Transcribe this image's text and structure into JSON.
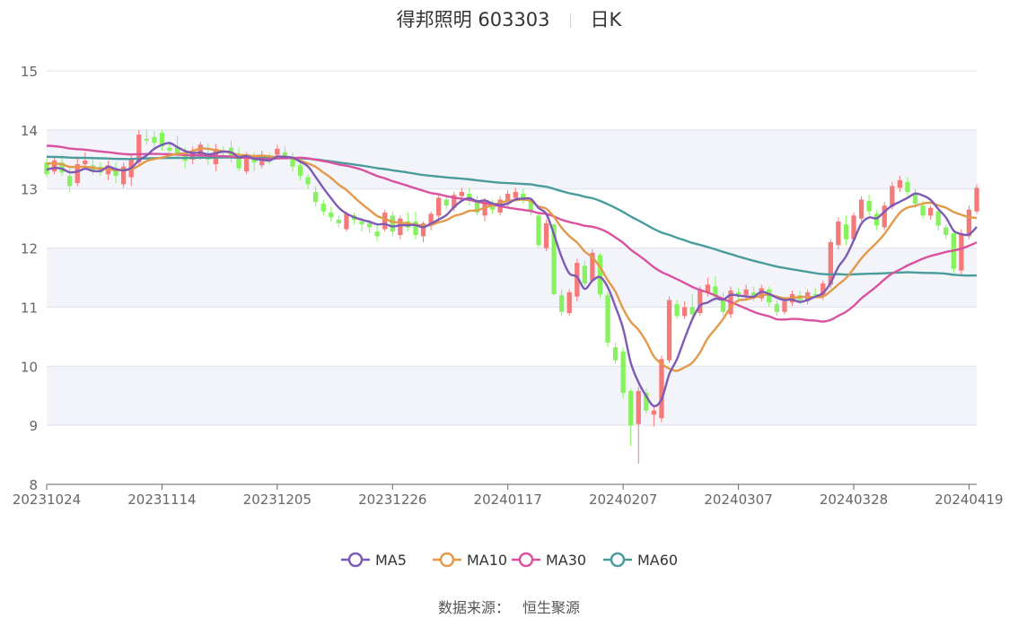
{
  "header": {
    "stock_name": "得邦照明",
    "stock_code": "603303",
    "period": "日K"
  },
  "footer": {
    "source_label": "数据来源：",
    "source_name": "恒生聚源"
  },
  "colors": {
    "up": "#f47a7a",
    "down": "#86f25e",
    "MA5": "#7d5ab3",
    "MA10": "#e3994b",
    "MA30": "#d9529f",
    "MA60": "#4a9c9c",
    "band": "#f3f4fa",
    "grid": "#dde1ee"
  },
  "chart_data": {
    "type": "candlestick",
    "title": "得邦照明 603303 日K",
    "ylim": [
      8,
      15
    ],
    "yticks": [
      8,
      9,
      10,
      11,
      12,
      13,
      14,
      15
    ],
    "xtick_labels": [
      "20231024",
      "20231114",
      "20231205",
      "20231226",
      "20240117",
      "20240207",
      "20240307",
      "20240328",
      "20240419"
    ],
    "xtick_index": [
      0,
      15,
      30,
      45,
      60,
      75,
      90,
      105,
      120
    ],
    "legend": [
      "MA5",
      "MA10",
      "MA30",
      "MA60"
    ],
    "legend_position": "bottom-center",
    "candles": [
      [
        13.45,
        13.25,
        13.52,
        13.2
      ],
      [
        13.3,
        13.48,
        13.55,
        13.25
      ],
      [
        13.45,
        13.28,
        13.58,
        13.22
      ],
      [
        13.22,
        13.05,
        13.4,
        12.95
      ],
      [
        13.1,
        13.42,
        13.55,
        13.05
      ],
      [
        13.42,
        13.48,
        13.62,
        13.35
      ],
      [
        13.4,
        13.3,
        13.52,
        13.25
      ],
      [
        13.38,
        13.28,
        13.45,
        13.22
      ],
      [
        13.25,
        13.4,
        13.48,
        13.15
      ],
      [
        13.35,
        13.22,
        13.45,
        13.1
      ],
      [
        13.08,
        13.38,
        13.45,
        13.02
      ],
      [
        13.2,
        13.5,
        13.58,
        13.05
      ],
      [
        13.45,
        13.92,
        14.0,
        13.4
      ],
      [
        13.85,
        13.82,
        14.0,
        13.75
      ],
      [
        13.88,
        13.78,
        13.98,
        13.7
      ],
      [
        13.95,
        13.72,
        14.0,
        13.65
      ],
      [
        13.7,
        13.65,
        13.8,
        13.6
      ],
      [
        13.72,
        13.58,
        13.9,
        13.55
      ],
      [
        13.62,
        13.48,
        13.7,
        13.35
      ],
      [
        13.5,
        13.62,
        13.72,
        13.42
      ],
      [
        13.55,
        13.75,
        13.8,
        13.5
      ],
      [
        13.6,
        13.5,
        13.78,
        13.4
      ],
      [
        13.42,
        13.68,
        13.76,
        13.3
      ],
      [
        13.65,
        13.62,
        13.72,
        13.55
      ],
      [
        13.7,
        13.55,
        13.82,
        13.45
      ],
      [
        13.55,
        13.35,
        13.7,
        13.3
      ],
      [
        13.3,
        13.58,
        13.62,
        13.25
      ],
      [
        13.55,
        13.45,
        13.62,
        13.3
      ],
      [
        13.4,
        13.55,
        13.65,
        13.35
      ],
      [
        13.5,
        13.48,
        13.6,
        13.42
      ],
      [
        13.58,
        13.68,
        13.75,
        13.5
      ],
      [
        13.62,
        13.55,
        13.72,
        13.5
      ],
      [
        13.55,
        13.38,
        13.62,
        13.3
      ],
      [
        13.4,
        13.22,
        13.5,
        13.15
      ],
      [
        13.2,
        13.08,
        13.25,
        13.0
      ],
      [
        12.95,
        12.78,
        13.05,
        12.7
      ],
      [
        12.75,
        12.62,
        12.82,
        12.55
      ],
      [
        12.6,
        12.52,
        12.7,
        12.45
      ],
      [
        12.48,
        12.42,
        12.55,
        12.35
      ],
      [
        12.32,
        12.58,
        12.62,
        12.28
      ],
      [
        12.55,
        12.48,
        12.6,
        12.4
      ],
      [
        12.45,
        12.4,
        12.52,
        12.28
      ],
      [
        12.42,
        12.35,
        12.48,
        12.25
      ],
      [
        12.28,
        12.2,
        12.38,
        12.12
      ],
      [
        12.32,
        12.6,
        12.65,
        12.28
      ],
      [
        12.55,
        12.28,
        12.62,
        12.2
      ],
      [
        12.22,
        12.5,
        12.55,
        12.15
      ],
      [
        12.45,
        12.35,
        12.6,
        12.28
      ],
      [
        12.45,
        12.22,
        12.62,
        12.15
      ],
      [
        12.2,
        12.42,
        12.45,
        12.1
      ],
      [
        12.38,
        12.58,
        12.62,
        12.3
      ],
      [
        12.55,
        12.85,
        12.92,
        12.45
      ],
      [
        12.82,
        12.72,
        12.9,
        12.65
      ],
      [
        12.68,
        12.9,
        12.95,
        12.62
      ],
      [
        12.88,
        12.95,
        13.02,
        12.8
      ],
      [
        12.92,
        12.8,
        13.02,
        12.72
      ],
      [
        12.78,
        12.6,
        12.88,
        12.55
      ],
      [
        12.55,
        12.78,
        12.85,
        12.45
      ],
      [
        12.72,
        12.65,
        12.82,
        12.58
      ],
      [
        12.6,
        12.82,
        12.88,
        12.55
      ],
      [
        12.78,
        12.92,
        12.98,
        12.7
      ],
      [
        12.85,
        12.95,
        13.02,
        12.8
      ],
      [
        12.92,
        12.85,
        13.0,
        12.75
      ],
      [
        12.78,
        12.62,
        12.85,
        12.55
      ],
      [
        12.55,
        12.05,
        12.58,
        12.0
      ],
      [
        12.0,
        12.42,
        12.48,
        11.95
      ],
      [
        12.4,
        11.22,
        12.42,
        11.2
      ],
      [
        11.2,
        10.92,
        11.3,
        10.85
      ],
      [
        10.9,
        11.25,
        11.3,
        10.85
      ],
      [
        11.18,
        11.75,
        11.82,
        11.1
      ],
      [
        11.7,
        11.4,
        11.78,
        11.35
      ],
      [
        11.45,
        11.92,
        11.98,
        11.42
      ],
      [
        11.88,
        11.22,
        11.92,
        11.15
      ],
      [
        11.2,
        10.4,
        11.25,
        10.32
      ],
      [
        10.32,
        10.1,
        10.4,
        10.05
      ],
      [
        10.25,
        9.55,
        10.32,
        9.45
      ],
      [
        9.58,
        9.0,
        9.62,
        8.65
      ],
      [
        9.02,
        9.58,
        9.65,
        8.35
      ],
      [
        9.55,
        9.25,
        9.62,
        9.2
      ],
      [
        9.18,
        9.25,
        9.32,
        8.98
      ],
      [
        9.12,
        10.12,
        10.18,
        9.05
      ],
      [
        10.1,
        11.12,
        11.18,
        10.05
      ],
      [
        11.05,
        10.85,
        11.12,
        10.8
      ],
      [
        10.85,
        11.0,
        11.1,
        10.8
      ],
      [
        11.0,
        10.88,
        11.22,
        10.82
      ],
      [
        10.9,
        11.28,
        11.35,
        10.85
      ],
      [
        11.25,
        11.38,
        11.5,
        11.18
      ],
      [
        11.35,
        11.18,
        11.52,
        11.1
      ],
      [
        11.15,
        10.92,
        11.25,
        10.85
      ],
      [
        10.88,
        11.28,
        11.35,
        10.82
      ],
      [
        11.25,
        11.22,
        11.32,
        11.12
      ],
      [
        11.2,
        11.3,
        11.38,
        11.15
      ],
      [
        11.25,
        11.18,
        11.35,
        11.1
      ],
      [
        11.15,
        11.32,
        11.38,
        11.1
      ],
      [
        11.3,
        11.08,
        11.35,
        11.0
      ],
      [
        11.05,
        10.92,
        11.12,
        10.85
      ],
      [
        10.92,
        11.1,
        11.15,
        10.88
      ],
      [
        11.08,
        11.22,
        11.28,
        11.02
      ],
      [
        11.2,
        11.12,
        11.28,
        11.05
      ],
      [
        11.1,
        11.25,
        11.3,
        11.05
      ],
      [
        11.22,
        11.2,
        11.32,
        11.15
      ],
      [
        11.18,
        11.4,
        11.45,
        11.12
      ],
      [
        11.38,
        12.1,
        12.15,
        11.32
      ],
      [
        12.05,
        12.45,
        12.52,
        11.98
      ],
      [
        12.4,
        12.15,
        12.55,
        12.05
      ],
      [
        12.15,
        12.55,
        12.6,
        12.1
      ],
      [
        12.5,
        12.82,
        12.88,
        12.45
      ],
      [
        12.8,
        12.62,
        12.9,
        12.55
      ],
      [
        12.58,
        12.38,
        12.65,
        12.3
      ],
      [
        12.35,
        12.72,
        12.78,
        12.3
      ],
      [
        12.7,
        13.05,
        13.12,
        12.65
      ],
      [
        13.02,
        13.15,
        13.22,
        12.95
      ],
      [
        13.12,
        12.95,
        13.2,
        12.88
      ],
      [
        12.92,
        12.75,
        13.0,
        12.68
      ],
      [
        12.72,
        12.55,
        12.8,
        12.5
      ],
      [
        12.55,
        12.68,
        12.72,
        12.48
      ],
      [
        12.62,
        12.38,
        12.68,
        12.3
      ],
      [
        12.35,
        12.22,
        12.4,
        12.15
      ],
      [
        12.25,
        11.65,
        12.3,
        11.58
      ],
      [
        11.62,
        12.25,
        12.32,
        11.55
      ],
      [
        12.2,
        12.65,
        12.72,
        12.15
      ],
      [
        12.62,
        13.02,
        13.08,
        12.58
      ]
    ]
  }
}
